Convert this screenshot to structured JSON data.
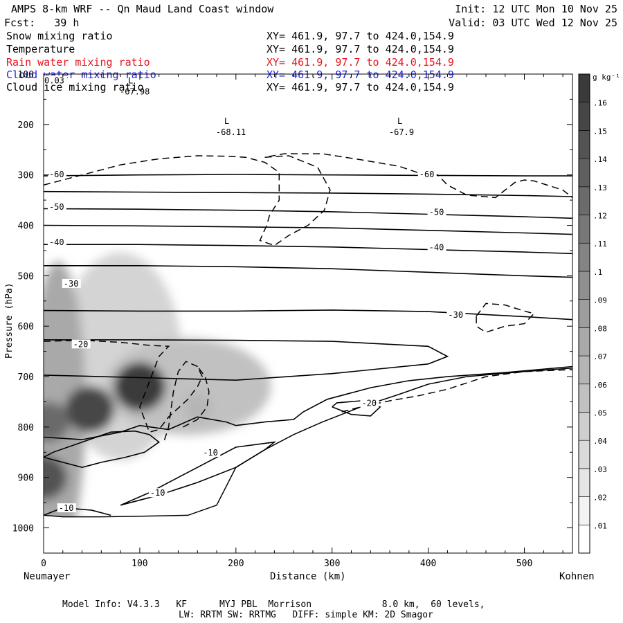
{
  "header": {
    "title": "AMPS 8-km WRF -- Qn Maud Land Coast window",
    "init": "Init: 12 UTC Mon 10 Nov 25",
    "fcst": "Fcst:   39 h",
    "valid": "Valid: 03 UTC Wed 12 Nov 25"
  },
  "fields": [
    {
      "name": "Snow mixing ratio",
      "xy": "XY= 461.9, 97.7 to 424.0,154.9",
      "color": "#000000"
    },
    {
      "name": "Temperature",
      "xy": "XY= 461.9, 97.7 to 424.0,154.9",
      "color": "#000000"
    },
    {
      "name": "Rain water mixing ratio",
      "xy": "XY= 461.9, 97.7 to 424.0,154.9",
      "color": "#e8141e"
    },
    {
      "name": "Cloud water mixing ratio",
      "xy": "XY= 461.9, 97.7 to 424.0,154.9",
      "color": "#1e1ee6"
    },
    {
      "name": "Cloud ice mixing ratio",
      "xy": "XY= 461.9, 97.7 to 424.0,154.9",
      "color": "#000000"
    }
  ],
  "footer": {
    "line1": "Model Info: V4.3.3   KF      MYJ PBL  Morrison             8.0 km,  60 levels,",
    "line2": "LW: RRTM SW: RRTMG   DIFF: simple KM: 2D Smagor"
  },
  "endpoints": {
    "left": "Neumayer",
    "right": "Kohnen"
  },
  "chart_data": {
    "type": "heatmap",
    "xlabel": "Distance (km)",
    "ylabel": "Pressure (hPa)",
    "xlim": [
      0,
      550
    ],
    "ylim": [
      1050,
      100
    ],
    "x_ticks": [
      0,
      100,
      200,
      300,
      400,
      500
    ],
    "y_ticks": [
      100,
      200,
      300,
      400,
      500,
      600,
      700,
      800,
      900,
      1000
    ],
    "y_tick_labels": [
      "100",
      "200",
      "300",
      "400",
      "500",
      "600",
      "700",
      "800",
      "900",
      "1000"
    ],
    "colorbar": {
      "unit": "g kg⁻¹",
      "levels": [
        ".01",
        ".02",
        ".03",
        ".04",
        ".05",
        ".06",
        ".07",
        ".08",
        ".09",
        ".1",
        ".11",
        ".12",
        ".13",
        ".14",
        ".15",
        ".16"
      ],
      "color_low": "#ffffff",
      "color_high": "#3a3a3a"
    },
    "snow_maxima": [
      {
        "x": 100,
        "p": 720,
        "value": 0.16
      },
      {
        "x": 48,
        "p": 765,
        "value": 0.15
      },
      {
        "x": 0,
        "p": 900,
        "value": 0.14
      },
      {
        "x": 5,
        "p": 790,
        "value": 0.12
      },
      {
        "x": 20,
        "p": 560,
        "value": 0.07
      },
      {
        "x": 160,
        "p": 760,
        "value": 0.06
      }
    ],
    "temperature_isotherms": [
      {
        "label": "-60",
        "points": [
          [
            0,
            302
          ],
          [
            100,
            300
          ],
          [
            200,
            299
          ],
          [
            300,
            300
          ],
          [
            400,
            301
          ],
          [
            500,
            302
          ],
          [
            550,
            302
          ]
        ]
      },
      {
        "label": "",
        "points": [
          [
            0,
            333
          ],
          [
            100,
            334
          ],
          [
            200,
            335
          ],
          [
            300,
            336
          ],
          [
            400,
            338
          ],
          [
            500,
            341
          ],
          [
            550,
            343
          ]
        ]
      },
      {
        "label": "-50",
        "points": [
          [
            0,
            367
          ],
          [
            100,
            368
          ],
          [
            200,
            370
          ],
          [
            300,
            373
          ],
          [
            400,
            378
          ],
          [
            500,
            383
          ],
          [
            550,
            386
          ]
        ]
      },
      {
        "label": "",
        "points": [
          [
            0,
            400
          ],
          [
            100,
            401
          ],
          [
            200,
            403
          ],
          [
            300,
            405
          ],
          [
            400,
            410
          ],
          [
            500,
            415
          ],
          [
            550,
            418
          ]
        ]
      },
      {
        "label": "-40",
        "points": [
          [
            0,
            438
          ],
          [
            100,
            438
          ],
          [
            200,
            440
          ],
          [
            300,
            443
          ],
          [
            400,
            448
          ],
          [
            500,
            453
          ],
          [
            550,
            456
          ]
        ]
      },
      {
        "label": "",
        "points": [
          [
            0,
            480
          ],
          [
            100,
            480
          ],
          [
            200,
            482
          ],
          [
            300,
            486
          ],
          [
            400,
            493
          ],
          [
            500,
            500
          ],
          [
            550,
            503
          ]
        ]
      },
      {
        "label": "-30",
        "points": [
          [
            0,
            569
          ],
          [
            100,
            570
          ],
          [
            200,
            570
          ],
          [
            300,
            568
          ],
          [
            400,
            571
          ],
          [
            500,
            581
          ],
          [
            550,
            587
          ]
        ]
      },
      {
        "label": "",
        "points": [
          [
            0,
            627
          ],
          [
            100,
            627
          ],
          [
            200,
            628
          ],
          [
            300,
            630
          ],
          [
            400,
            640
          ],
          [
            420,
            660
          ],
          [
            400,
            675
          ],
          [
            300,
            694
          ],
          [
            200,
            707
          ],
          [
            100,
            702
          ],
          [
            0,
            697
          ]
        ]
      },
      {
        "label": "",
        "points": [
          [
            0,
            820
          ],
          [
            40,
            825
          ],
          [
            80,
            810
          ],
          [
            100,
            797
          ],
          [
            130,
            805
          ],
          [
            160,
            780
          ],
          [
            190,
            790
          ],
          [
            200,
            797
          ],
          [
            230,
            790
          ],
          [
            260,
            785
          ],
          [
            270,
            770
          ],
          [
            295,
            745
          ],
          [
            340,
            722
          ],
          [
            380,
            708
          ],
          [
            420,
            700
          ],
          [
            480,
            692
          ],
          [
            550,
            680
          ]
        ]
      }
    ],
    "temperature_extrema": [
      {
        "type": "L",
        "x": 90,
        "p": 135,
        "value": "-67.98"
      },
      {
        "type": "L",
        "x": 190,
        "p": 215,
        "value": "-68.11"
      },
      {
        "type": "L",
        "x": 370,
        "p": 215,
        "value": "-67.9"
      }
    ],
    "inline_labels": [
      "-60",
      "-50",
      "-40",
      "-30",
      "-20",
      "-10",
      "-10",
      "-10",
      "-20",
      "-30",
      "-40",
      "-50",
      "-60",
      "0.03"
    ]
  }
}
